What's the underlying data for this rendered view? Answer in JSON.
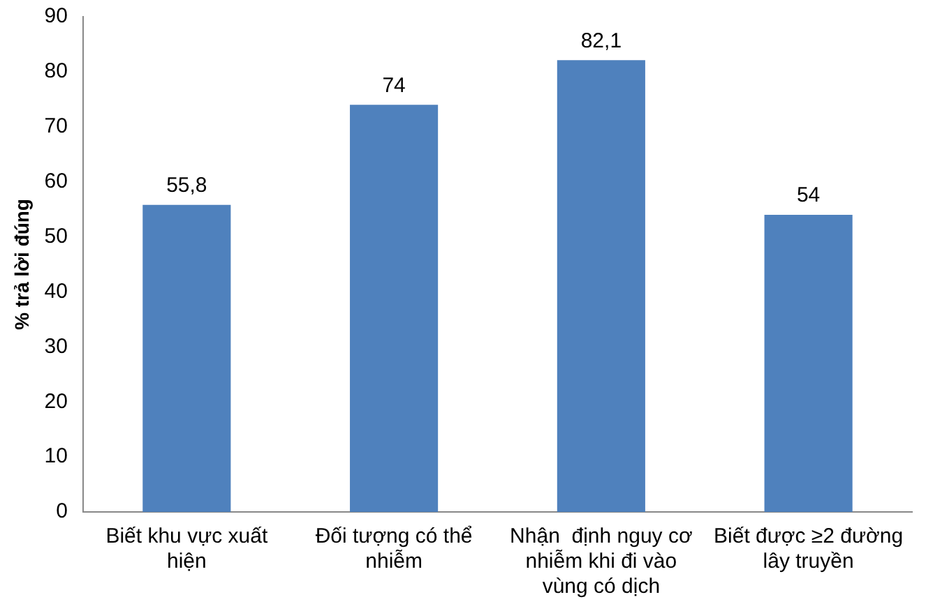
{
  "chart_data": {
    "type": "bar",
    "ylabel": "% trả lời đúng",
    "categories": [
      "Biết khu vực xuất hiện",
      "Đối tượng có thể nhiễm",
      "Nhận  định nguy cơ nhiễm khi đi vào vùng có dịch",
      "Biết được ≥2 đường lây truyền"
    ],
    "values": [
      55.8,
      74,
      82.1,
      54
    ],
    "color": "#4f81bd",
    "value_labels": [
      "55,8",
      "74",
      "82,1",
      "54"
    ],
    "ylim": [
      0,
      90
    ],
    "yticks": [
      0,
      10,
      20,
      30,
      40,
      50,
      60,
      70,
      80,
      90
    ],
    "grid": false,
    "legend": false
  }
}
